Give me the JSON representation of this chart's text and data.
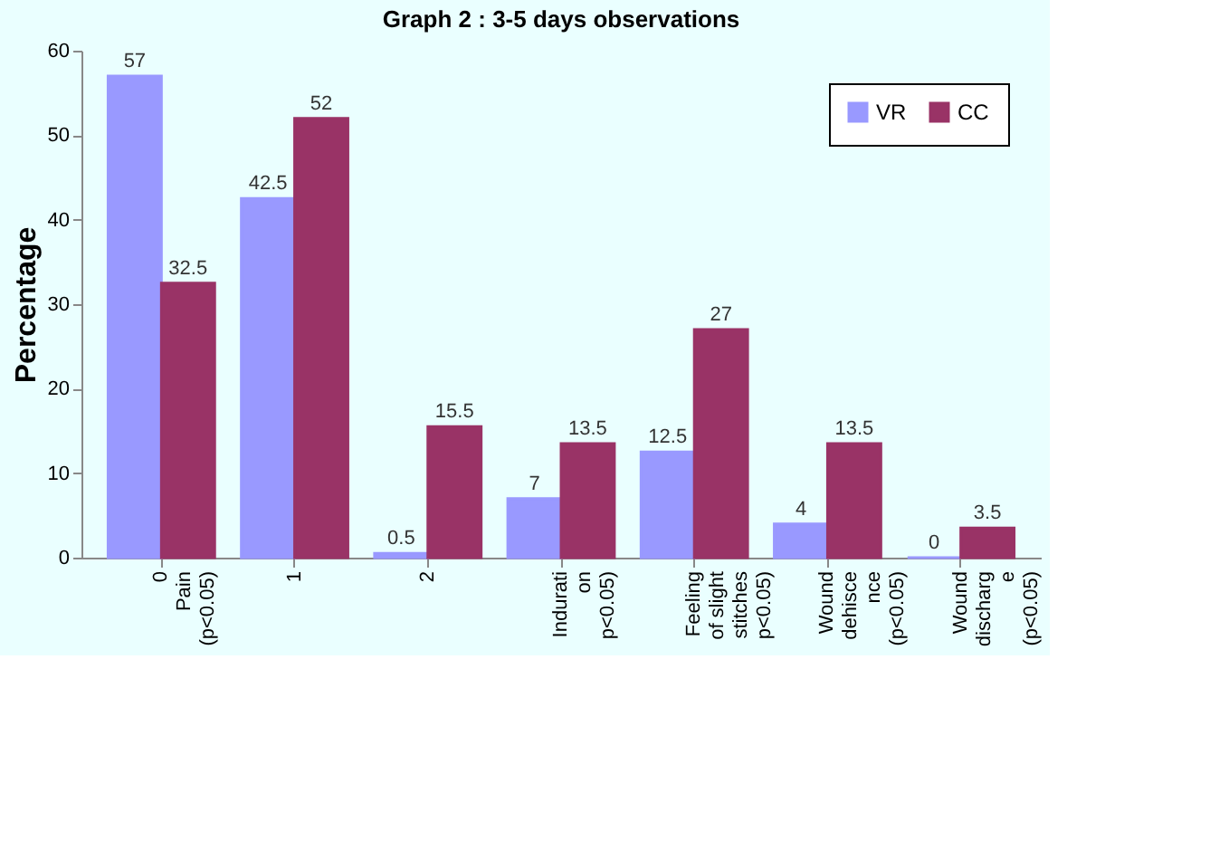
{
  "chart_data": {
    "type": "bar",
    "title": "Graph 2 : 3-5 days observations",
    "ylabel": "Percentage",
    "categories": [
      "0\nPain\n(p<0.05)",
      "1",
      "2",
      "Indurati\non\np<0.05)",
      "Feeling\nof slight\nstitches\np<0.05)",
      "Wound\ndehisce\nnce\n(p<0.05)",
      "Wound\ndischarg\ne\n(p<0.05)"
    ],
    "series": [
      {
        "name": "VR",
        "color": "#9999ff",
        "values": [
          57,
          42.5,
          0.5,
          7,
          12.5,
          4,
          0
        ]
      },
      {
        "name": "CC",
        "color": "#993366",
        "values": [
          32.5,
          52,
          15.5,
          13.5,
          27,
          13.5,
          3.5
        ]
      }
    ],
    "ylim": [
      0,
      60
    ],
    "yticks": [
      0,
      10,
      20,
      30,
      40,
      50,
      60
    ],
    "grid": false,
    "legend": "top right",
    "data_labels": true
  }
}
